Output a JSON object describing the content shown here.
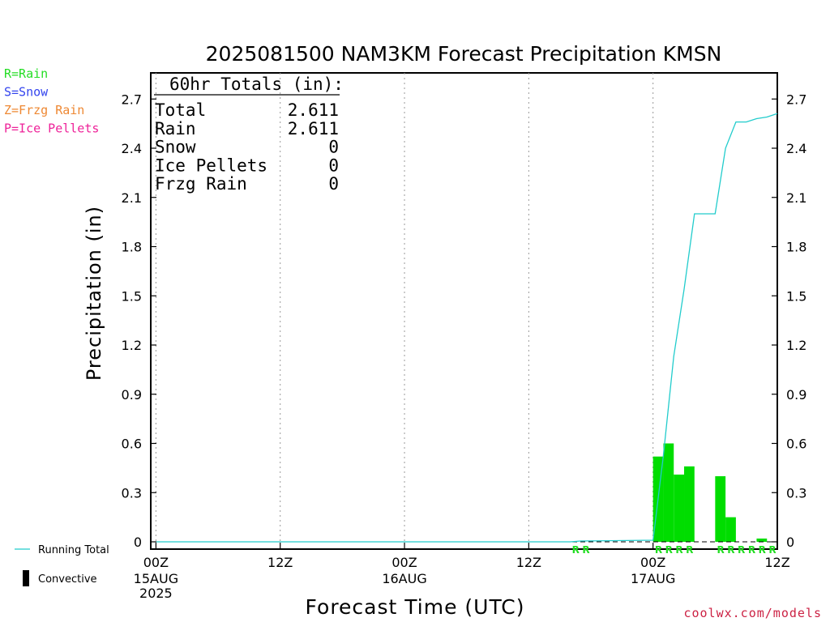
{
  "chart_data": {
    "type": "bar",
    "title": "2025081500 NAM3KM Forecast Precipitation KMSN",
    "xlabel": "Forecast Time (UTC)",
    "ylabel": "Precipitation (in)",
    "ylim": [
      0,
      2.85
    ],
    "yticks": [
      "0",
      "0.3",
      "0.6",
      "0.9",
      "1.2",
      "1.5",
      "1.8",
      "2.1",
      "2.4",
      "2.7"
    ],
    "xlim_hours": [
      -0.5,
      60
    ],
    "xticks": [
      {
        "hour": 0,
        "label": "00Z",
        "sub": [
          "15AUG",
          "2025"
        ]
      },
      {
        "hour": 12,
        "label": "12Z",
        "sub": []
      },
      {
        "hour": 24,
        "label": "00Z",
        "sub": [
          "16AUG"
        ]
      },
      {
        "hour": 36,
        "label": "12Z",
        "sub": []
      },
      {
        "hour": 48,
        "label": "00Z",
        "sub": [
          "17AUG"
        ]
      },
      {
        "hour": 60,
        "label": "12Z",
        "sub": []
      }
    ],
    "bars": [
      {
        "hour": 49,
        "value": 0.52
      },
      {
        "hour": 50,
        "value": 0.6
      },
      {
        "hour": 51,
        "value": 0.41
      },
      {
        "hour": 52,
        "value": 0.46
      },
      {
        "hour": 55,
        "value": 0.4
      },
      {
        "hour": 56,
        "value": 0.15
      },
      {
        "hour": 59,
        "value": 0.02
      }
    ],
    "running_total": {
      "hours": [
        0,
        40,
        41,
        48,
        49,
        50,
        51,
        52,
        53,
        54,
        55,
        56,
        57,
        58,
        59,
        60
      ],
      "values": [
        0,
        0,
        0.005,
        0.01,
        0.53,
        1.13,
        1.54,
        2.0,
        2.0,
        2.0,
        2.4,
        2.56,
        2.56,
        2.58,
        2.59,
        2.611
      ]
    },
    "precip_type_marks": {
      "hours": [
        41,
        42,
        49,
        50,
        51,
        52,
        55,
        56,
        57,
        58,
        59,
        60
      ],
      "label": "R"
    },
    "totals_box": {
      "heading": "60hr Totals (in):",
      "rows": [
        {
          "name": "Total",
          "value": "2.611"
        },
        {
          "name": "Rain",
          "value": "2.611"
        },
        {
          "name": "Snow",
          "value": "0"
        },
        {
          "name": "Ice Pellets",
          "value": "0"
        },
        {
          "name": "Frzg Rain",
          "value": "0"
        }
      ]
    },
    "type_legend": [
      {
        "text": "R=Rain",
        "color": "#22dd22"
      },
      {
        "text": "S=Snow",
        "color": "#3344ee"
      },
      {
        "text": "Z=Frzg Rain",
        "color": "#ee8833"
      },
      {
        "text": "P=Ice Pellets",
        "color": "#ee2299"
      }
    ],
    "series_legend": [
      {
        "text": "Running Total",
        "color": "#22cccc",
        "style": "line"
      },
      {
        "text": "Convective",
        "color": "#000000",
        "style": "bar"
      }
    ],
    "bar_color": "#00dd00",
    "line_color": "#22cccc",
    "grid": "vertical-dotted",
    "credit": "coolwx.com/models"
  }
}
